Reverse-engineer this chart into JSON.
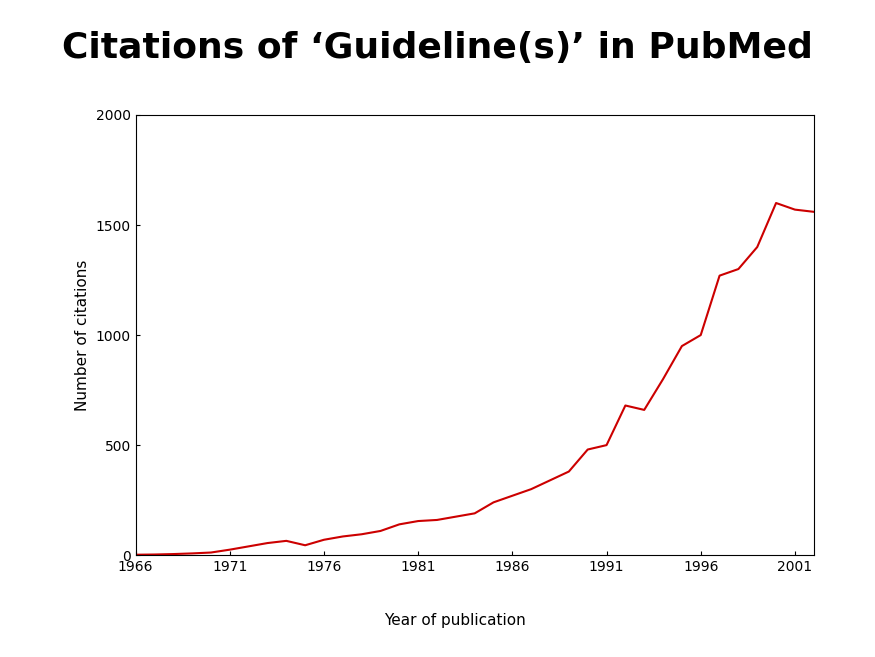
{
  "title": "Citations of ‘Guideline(s)’ in PubMed",
  "title_bg_color": "#FFA500",
  "title_text_color": "#000000",
  "xlabel": "Year of publication",
  "ylabel": "Number of citations",
  "line_color": "#CC0000",
  "line_width": 1.5,
  "background_color": "#FFFFFF",
  "xlim": [
    1966,
    2002
  ],
  "ylim": [
    0,
    2000
  ],
  "xticks": [
    1966,
    1971,
    1976,
    1981,
    1986,
    1991,
    1996,
    2001
  ],
  "yticks": [
    0,
    500,
    1000,
    1500,
    2000
  ],
  "years": [
    1966,
    1967,
    1968,
    1969,
    1970,
    1971,
    1972,
    1973,
    1974,
    1975,
    1976,
    1977,
    1978,
    1979,
    1980,
    1981,
    1982,
    1983,
    1984,
    1985,
    1986,
    1987,
    1988,
    1989,
    1990,
    1991,
    1992,
    1993,
    1994,
    1995,
    1996,
    1997,
    1998,
    1999,
    2000,
    2001,
    2002
  ],
  "citations": [
    2,
    3,
    5,
    8,
    12,
    25,
    40,
    55,
    65,
    45,
    70,
    85,
    95,
    110,
    140,
    155,
    160,
    175,
    190,
    240,
    270,
    300,
    340,
    380,
    480,
    500,
    680,
    660,
    800,
    950,
    1000,
    1270,
    1300,
    1400,
    1600,
    1570,
    1560
  ]
}
